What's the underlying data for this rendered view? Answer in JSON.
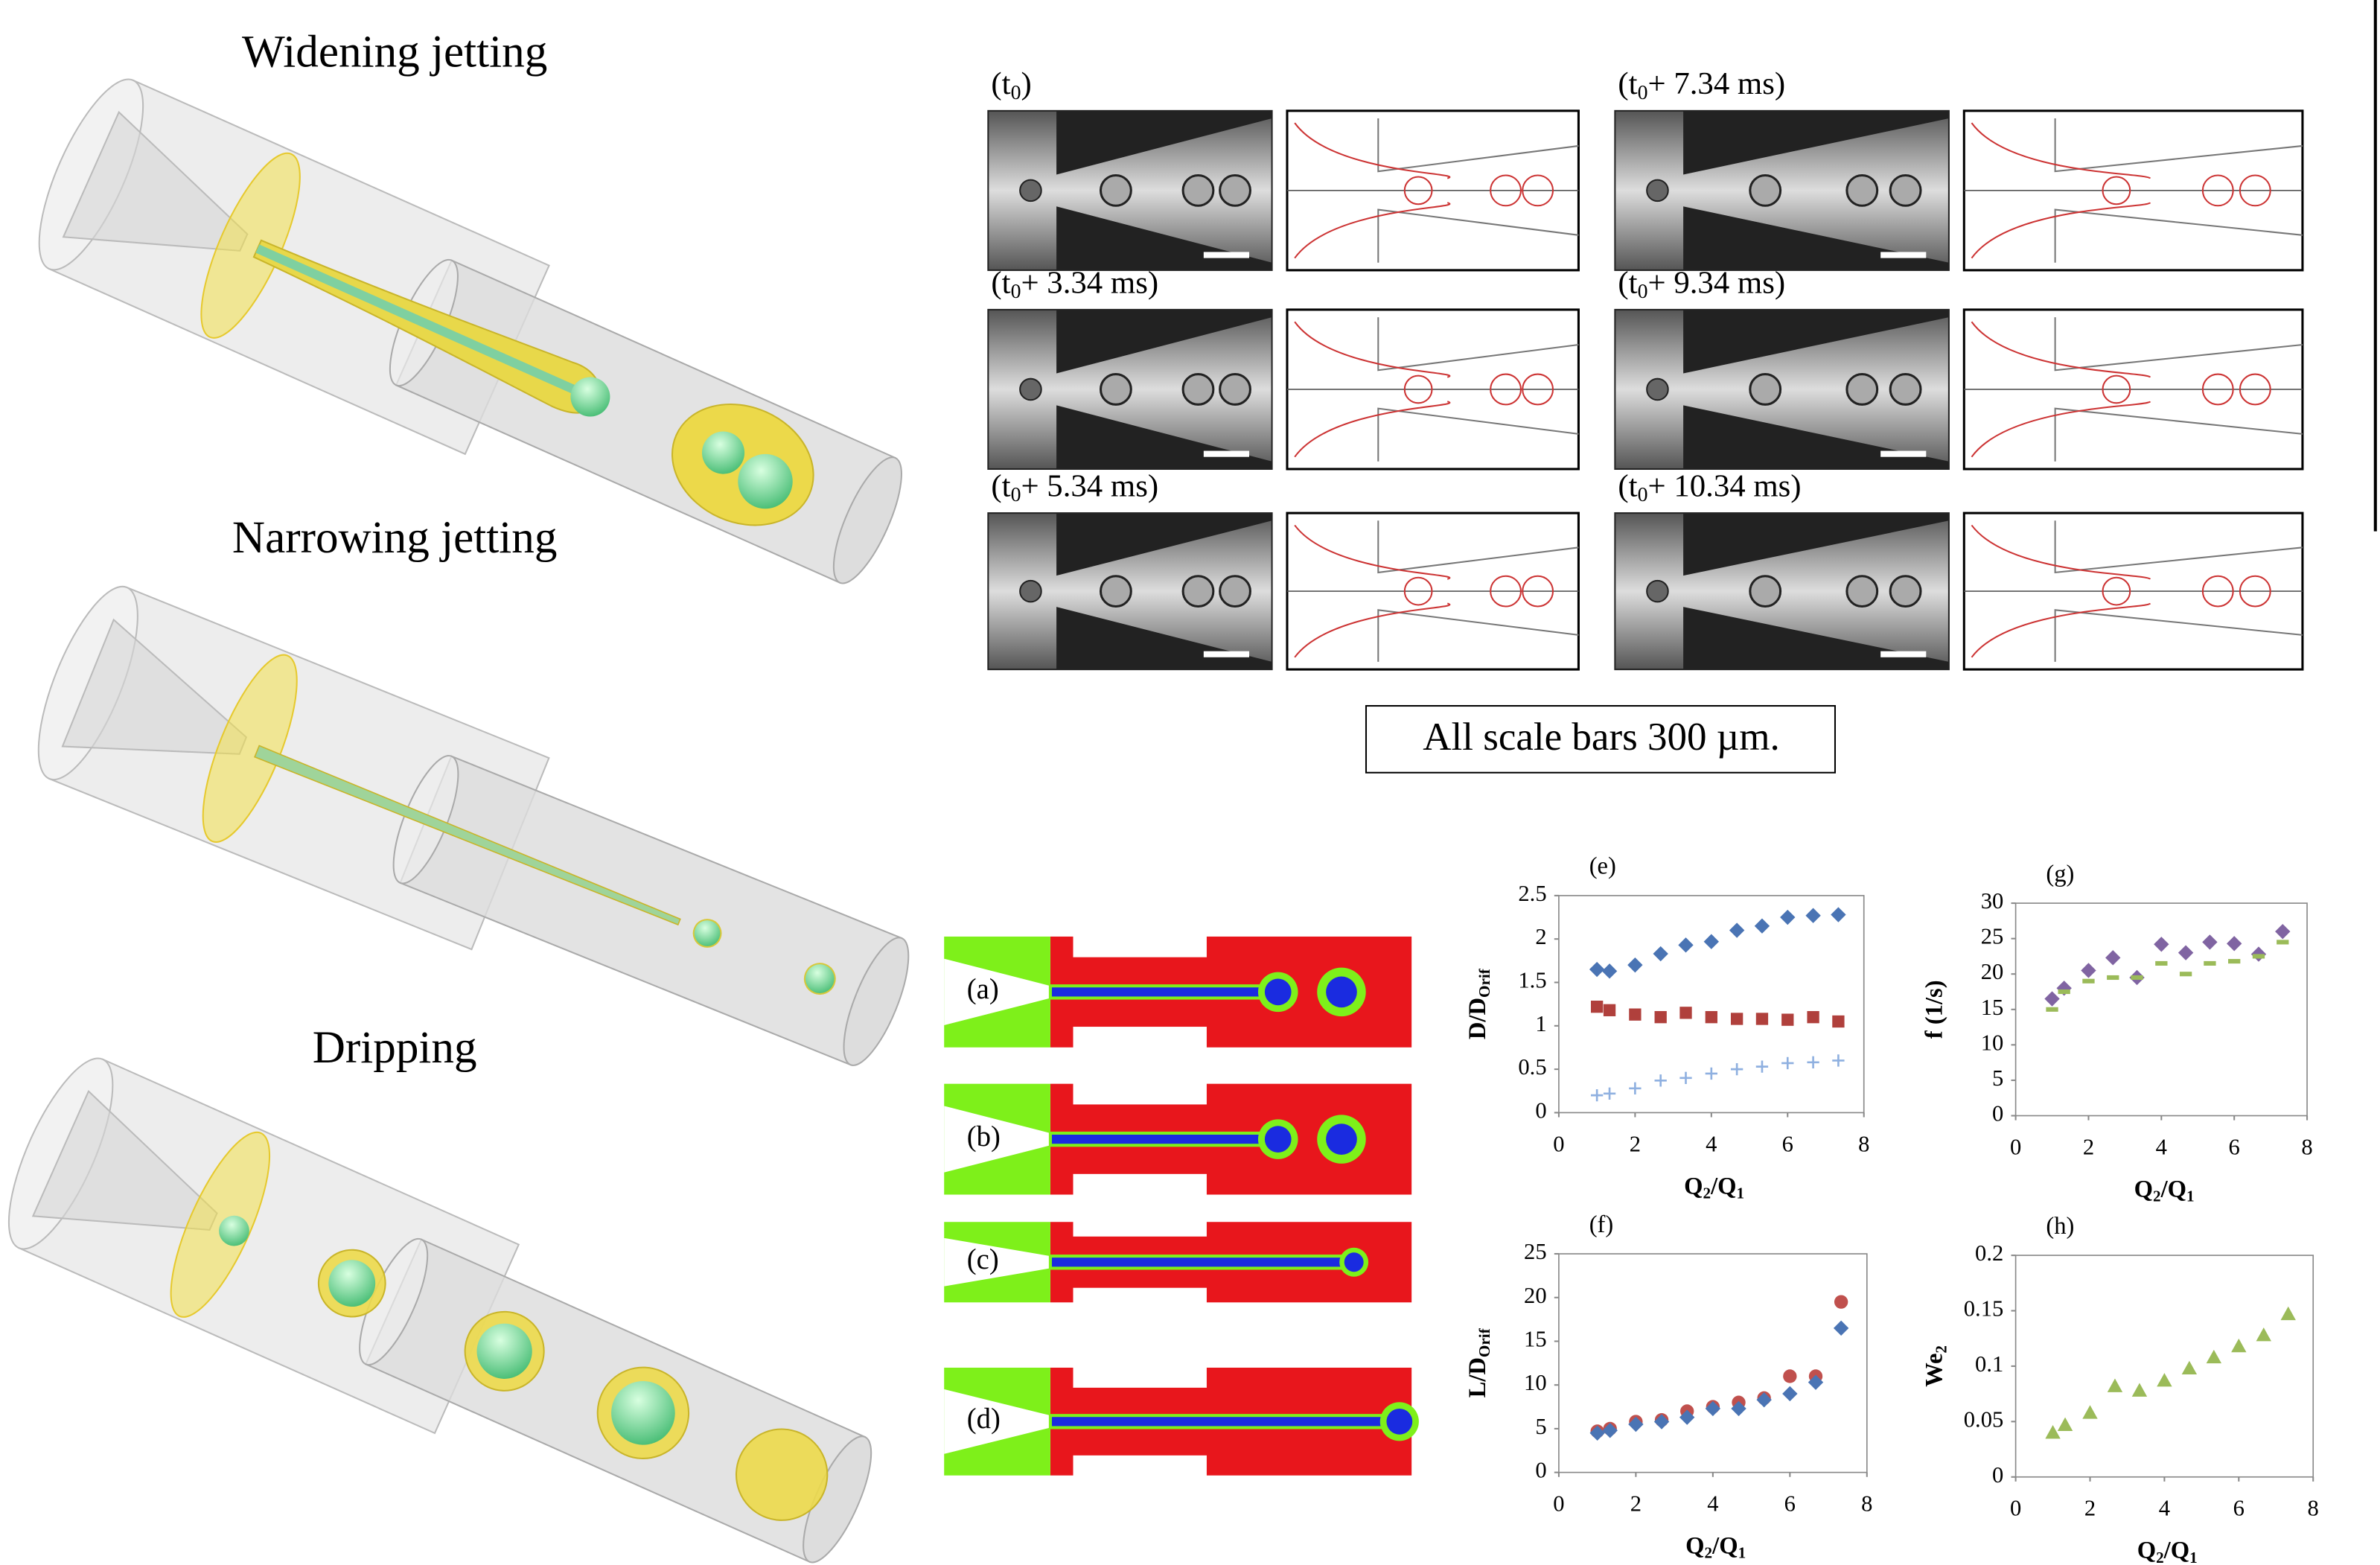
{
  "renderings": [
    {
      "title": "Widening jetting"
    },
    {
      "title": "Narrowing jetting"
    },
    {
      "title": "Dripping"
    }
  ],
  "micrographs": {
    "panels": [
      {
        "label": [
          "(t",
          "0",
          ")"
        ]
      },
      {
        "label": [
          "(t",
          "0",
          "+ 7.34 ms)"
        ]
      },
      {
        "label": [
          "(t",
          "0",
          "+ 3.34 ms)"
        ]
      },
      {
        "label": [
          "(t",
          "0",
          "+ 9.34 ms)"
        ]
      },
      {
        "label": [
          "(t",
          "0",
          "+ 5.34 ms)"
        ]
      },
      {
        "label": [
          "(t",
          "0",
          "+ 10.34 ms)"
        ]
      }
    ],
    "caption": "All scale bars 300 µm."
  },
  "simulations": {
    "labels": [
      "(a)",
      "(b)",
      "(c)",
      "(d)"
    ]
  },
  "chart_data": [
    {
      "type": "scatter",
      "label": "(e)",
      "x": [
        1,
        1.33,
        2,
        2.67,
        3.33,
        4,
        4.67,
        5.33,
        6,
        6.67,
        7.33
      ],
      "xlim": [
        0,
        8
      ],
      "xticks": [
        0,
        2,
        4,
        6,
        8
      ],
      "ylim": [
        0,
        2.5
      ],
      "yticks": [
        0,
        0.5,
        1,
        1.5,
        2,
        2.5
      ],
      "xlabel": [
        "Q",
        "2",
        "/Q",
        "1"
      ],
      "ylabel": [
        "D/D",
        "Orif"
      ],
      "series": [
        {
          "color": "#4a74b4",
          "marker": "diamond",
          "values": [
            1.65,
            1.63,
            1.7,
            1.83,
            1.93,
            1.97,
            2.1,
            2.15,
            2.25,
            2.27,
            2.28
          ]
        },
        {
          "color": "#b0403c",
          "marker": "square",
          "values": [
            1.22,
            1.18,
            1.13,
            1.1,
            1.15,
            1.1,
            1.08,
            1.08,
            1.07,
            1.1,
            1.05
          ]
        },
        {
          "color": "#8fb0e0",
          "marker": "plus",
          "values": [
            0.2,
            0.22,
            0.28,
            0.37,
            0.4,
            0.45,
            0.5,
            0.53,
            0.57,
            0.58,
            0.6
          ]
        }
      ]
    },
    {
      "type": "scatter",
      "label": "(g)",
      "x": [
        1,
        1.33,
        2,
        2.67,
        3.33,
        4,
        4.67,
        5.33,
        6,
        6.67,
        7.33
      ],
      "xlim": [
        0,
        8
      ],
      "xticks": [
        0,
        2,
        4,
        6,
        8
      ],
      "ylim": [
        0,
        30
      ],
      "yticks": [
        0,
        5,
        10,
        15,
        20,
        25,
        30
      ],
      "xlabel": [
        "Q",
        "2",
        "/Q",
        "1"
      ],
      "ylabel": [
        "f (1/s)"
      ],
      "series": [
        {
          "color": "#8064a2",
          "marker": "diamond",
          "values": [
            16.5,
            18,
            20.5,
            22.3,
            19.5,
            24.2,
            23,
            24.5,
            24.3,
            22.8,
            26
          ]
        },
        {
          "color": "#9bbb59",
          "marker": "dash",
          "values": [
            15,
            17.5,
            19,
            19.5,
            19.5,
            21.5,
            20,
            21.5,
            21.8,
            22.5,
            24.5
          ]
        }
      ]
    },
    {
      "type": "scatter",
      "label": "(f)",
      "x": [
        1,
        1.33,
        2,
        2.67,
        3.33,
        4,
        4.67,
        5.33,
        6,
        6.67,
        7.33
      ],
      "xlim": [
        0,
        8
      ],
      "xticks": [
        0,
        2,
        4,
        6,
        8
      ],
      "ylim": [
        0,
        25
      ],
      "yticks": [
        0,
        5,
        10,
        15,
        20,
        25
      ],
      "xlabel": [
        "Q",
        "2",
        "/Q",
        "1"
      ],
      "ylabel": [
        "L/D",
        "Orif"
      ],
      "series": [
        {
          "color": "#c0504d",
          "marker": "circle",
          "values": [
            4.7,
            5,
            5.8,
            6,
            7,
            7.5,
            8,
            8.5,
            11,
            11,
            19.5
          ]
        },
        {
          "color": "#4a74b4",
          "marker": "diamond",
          "values": [
            4.5,
            4.8,
            5.5,
            5.8,
            6.3,
            7.3,
            7.3,
            8.3,
            9,
            10.3,
            16.5
          ]
        }
      ]
    },
    {
      "type": "scatter",
      "label": "(h)",
      "x": [
        1,
        1.33,
        2,
        2.67,
        3.33,
        4,
        4.67,
        5.33,
        6,
        6.67,
        7.33
      ],
      "xlim": [
        0,
        8
      ],
      "xticks": [
        0,
        2,
        4,
        6,
        8
      ],
      "ylim": [
        0,
        0.2
      ],
      "yticks": [
        0,
        0.05,
        0.1,
        0.15,
        0.2
      ],
      "xlabel": [
        "Q",
        "2",
        "/Q",
        "1"
      ],
      "ylabel": [
        "We",
        "2"
      ],
      "series": [
        {
          "color": "#9bbb59",
          "marker": "triangle",
          "values": [
            0.04,
            0.047,
            0.058,
            0.082,
            0.078,
            0.087,
            0.098,
            0.108,
            0.118,
            0.128,
            0.147
          ]
        }
      ]
    }
  ]
}
